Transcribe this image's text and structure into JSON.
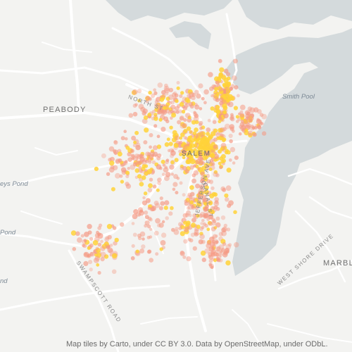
{
  "map": {
    "labels": {
      "peabody": "PEABODY",
      "smith_pool": "Smith Pool",
      "salem": "SALEM",
      "marble": "MARBL",
      "north_street": "NORTH ST",
      "jefferson_ave": "JEFFERSON AVE",
      "canal_street": "CANAL ST",
      "swampscott_road": "SWAMPSCOTT ROAD",
      "west_shore_drive": "WEST SHORE DRIVE",
      "pond_upper": "eys Pond",
      "pond_mid": "Pond",
      "pond_lower": "nd"
    },
    "attribution": "Map tiles by Carto, under CC BY 3.0. Data by OpenStreetMap, under ODbL.",
    "colors": {
      "land": "#f3f3f1",
      "water": "#d4dadc",
      "roads": "#ffffff",
      "dots_low": "#f59a84",
      "dots_high": "#ffd23a"
    },
    "layers": [
      "water",
      "roads",
      "point-density"
    ]
  }
}
